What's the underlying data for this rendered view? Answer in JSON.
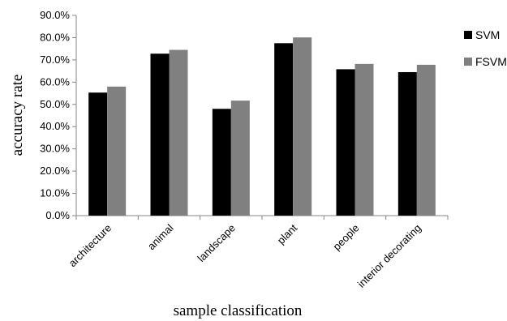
{
  "chart_data": {
    "type": "bar",
    "title": "",
    "xlabel": "sample classification",
    "ylabel": "accuracy rate",
    "categories": [
      "architecture",
      "animal",
      "landscape",
      "plant",
      "people",
      "interior decorating"
    ],
    "series": [
      {
        "name": "SVM",
        "values": [
          55.3,
          72.8,
          48.0,
          77.5,
          65.8,
          64.5
        ],
        "color": "#000000"
      },
      {
        "name": "FSVM",
        "values": [
          58.0,
          74.5,
          51.7,
          80.1,
          68.2,
          67.8
        ],
        "color": "#808080"
      }
    ],
    "ylim": [
      0,
      90
    ],
    "yticks": [
      "0.0%",
      "10.0%",
      "20.0%",
      "30.0%",
      "40.0%",
      "50.0%",
      "60.0%",
      "70.0%",
      "80.0%",
      "90.0%"
    ],
    "grid": false,
    "legend_position": "right"
  }
}
